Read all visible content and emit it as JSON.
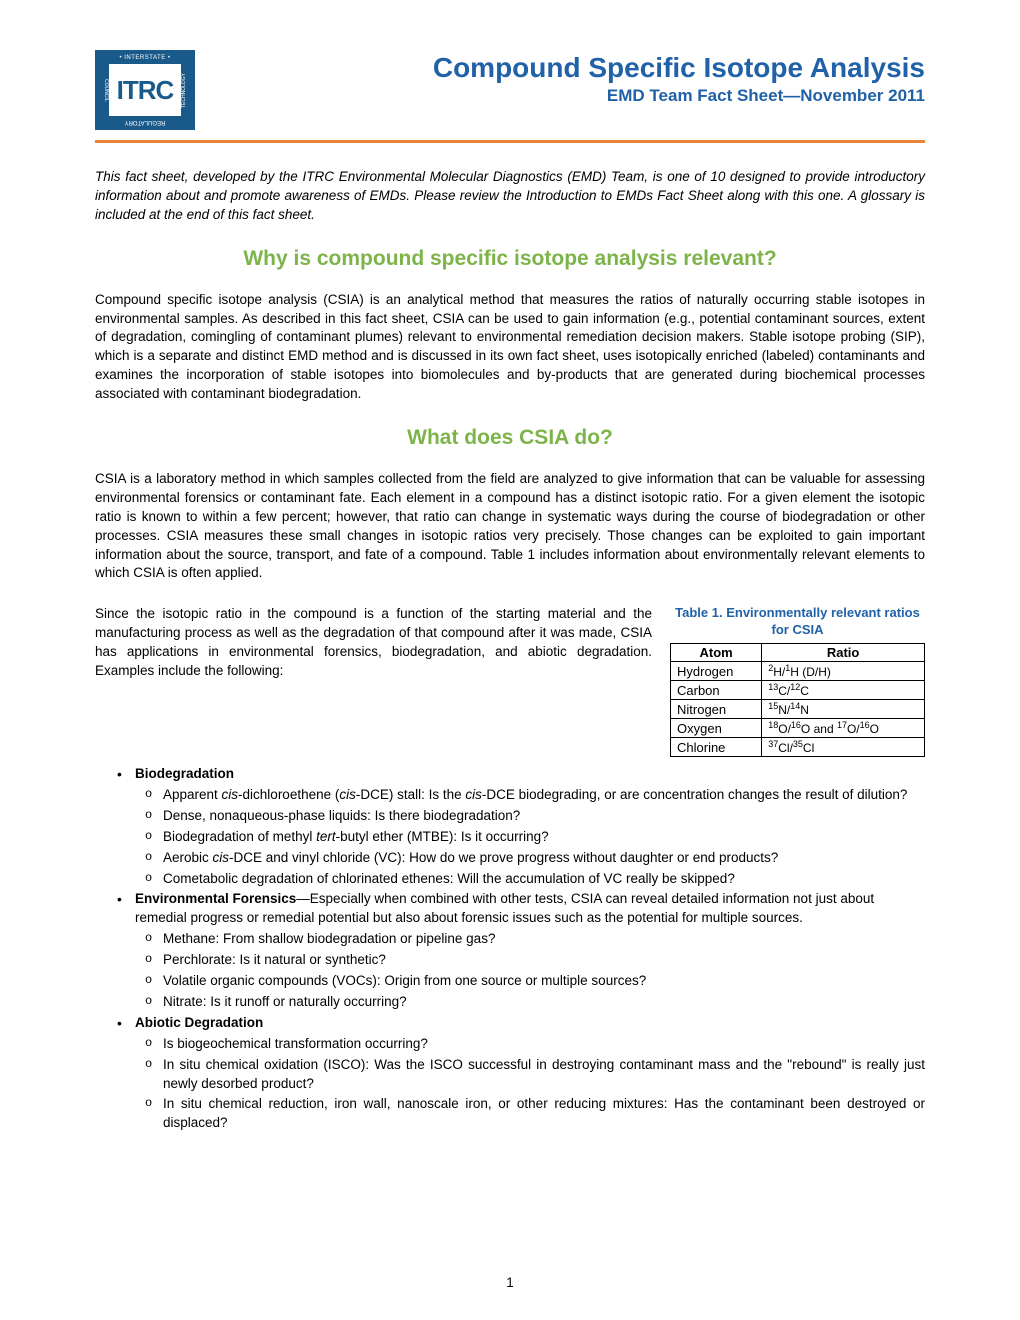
{
  "logo": {
    "top": "• INTERSTATE •",
    "left": "COUNCIL",
    "right": "TECHNOLOGY",
    "center": "ITRC",
    "bottom": "REGULATORY"
  },
  "header": {
    "title": "Compound Specific Isotope Analysis",
    "subtitle": "EMD Team Fact Sheet—November 2011"
  },
  "intro": "This fact sheet, developed by the ITRC Environmental Molecular Diagnostics (EMD) Team, is one of 10 designed to provide introductory information about and promote awareness of EMDs. Please review the Introduction to EMDs Fact Sheet along with this one. A glossary is included at the end of this fact sheet.",
  "section1": {
    "title": "Why is compound specific isotope analysis relevant?",
    "body": "Compound specific isotope analysis (CSIA) is an analytical method that measures the ratios of naturally occurring stable isotopes in environmental samples. As described in this fact sheet, CSIA can be used to gain information (e.g., potential contaminant sources, extent of degradation, comingling of contaminant plumes) relevant to environmental remediation decision makers. Stable isotope probing (SIP), which is a separate and distinct EMD method and is discussed in its own fact sheet, uses isotopically enriched (labeled) contaminants and examines the incorporation of stable isotopes into biomolecules and by-products that are generated during biochemical processes associated with contaminant biodegradation."
  },
  "section2": {
    "title": "What does CSIA do?",
    "body": "CSIA is a laboratory method in which samples collected from the field are analyzed to give information that can be valuable for assessing environmental forensics or contaminant fate. Each element in a compound has a distinct isotopic ratio. For a given element the isotopic ratio is known to within a few percent; however, that ratio can change in systematic ways during the course of biodegradation or other processes. CSIA measures these small changes in isotopic ratios very precisely. Those changes can be exploited to gain important information about the source, transport, and fate of a compound. Table 1 includes information about environmentally relevant elements to which CSIA is often applied.",
    "leftpara": "Since the isotopic ratio in the compound is a function of the starting material and the manufacturing process as well as the degradation of that compound after it was made, CSIA has applications in environmental forensics, biodegradation, and abiotic degradation. Examples include the following:"
  },
  "table": {
    "title": "Table 1. Environmentally relevant ratios for CSIA",
    "columns": [
      "Atom",
      "Ratio"
    ],
    "rows": [
      {
        "atom": "Hydrogen",
        "ratio_html": "<sup>2</sup>H/<sup>1</sup>H (D/H)"
      },
      {
        "atom": "Carbon",
        "ratio_html": "<sup>13</sup>C/<sup>12</sup>C"
      },
      {
        "atom": "Nitrogen",
        "ratio_html": "<sup>15</sup>N/<sup>14</sup>N"
      },
      {
        "atom": "Oxygen",
        "ratio_html": "<sup>18</sup>O/<sup>16</sup>O and <sup>17</sup>O/<sup>16</sup>O"
      },
      {
        "atom": "Chlorine",
        "ratio_html": "<sup>37</sup>Cl/<sup>35</sup>Cl"
      }
    ]
  },
  "bullets": {
    "biodeg": {
      "label": "Biodegradation",
      "items": [
        "Apparent <em class=\"ital\">cis</em>-dichloroethene (<em class=\"ital\">cis</em>-DCE) stall: Is the <em class=\"ital\">cis</em>-DCE biodegrading, or are concentration changes the result of dilution?",
        "Dense, nonaqueous-phase liquids: Is there biodegradation?",
        "Biodegradation of methyl <em class=\"ital\">tert</em>-butyl ether (MTBE): Is it occurring?",
        "Aerobic <em class=\"ital\">cis</em>-DCE and vinyl chloride (VC): How do we prove progress without daughter or end products?",
        "Cometabolic degradation of chlorinated ethenes: Will the accumulation of VC really be skipped?"
      ]
    },
    "forensics": {
      "label": "Environmental Forensics",
      "cont": "—Especially when combined with other tests, CSIA can reveal detailed information not just about remedial progress or remedial potential but also about forensic issues such as the potential for multiple sources.",
      "items": [
        "Methane: From shallow biodegradation or pipeline gas?",
        "Perchlorate: Is it natural or synthetic?",
        "Volatile organic compounds (VOCs): Origin from one source or multiple sources?",
        "Nitrate: Is it runoff or naturally occurring?"
      ]
    },
    "abiotic": {
      "label": "Abiotic Degradation",
      "items": [
        "Is biogeochemical transformation occurring?",
        "In situ chemical oxidation (ISCO): Was the ISCO successful in destroying contaminant mass and the \"rebound\" is really just newly desorbed product?",
        "In situ chemical reduction, iron wall, nanoscale iron, or other reducing mixtures: Has the contaminant been destroyed or displaced?"
      ]
    }
  },
  "page_number": "1",
  "colors": {
    "title_blue": "#2161a8",
    "section_green": "#7db44a",
    "line_orange": "#e8833a",
    "logo_blue": "#1a5a8a"
  }
}
